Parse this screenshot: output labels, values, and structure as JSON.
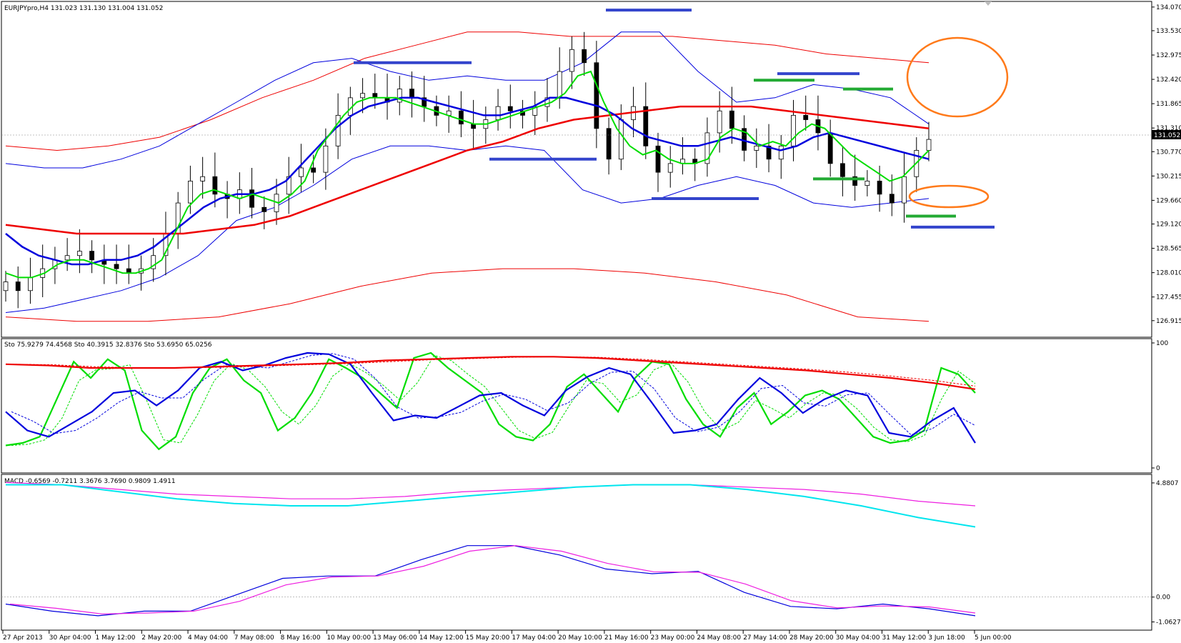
{
  "main_header": "EURJPYpro,H4  131.023 131.130 131.004 131.052",
  "sto_header": "Sto 75.9279 74.4568   Sto 40.3915 32.8376   Sto 53.6950 65.0256",
  "macd_header": "MACD -0.6569 -0.7211 3.3676 3.7690 0.9809 1.4911",
  "current_price": "131.052",
  "colors": {
    "bull": "#ffffff",
    "bear": "#000000",
    "green": "#00dd00",
    "blue": "#0000dd",
    "red": "#ee0000",
    "cyan": "#00e5ee",
    "magenta": "#ee1ee0",
    "orange": "#ff7a1a",
    "segblue": "#3344cc",
    "seggreen": "#22aa33"
  },
  "chart_data": [
    {
      "type": "candlestick",
      "title": "EURJPYpro,H4",
      "ylim": [
        126.7,
        134.1
      ],
      "y_ticks": [
        "134.070",
        "133.530",
        "132.975",
        "132.420",
        "131.865",
        "131.310",
        "130.770",
        "130.215",
        "129.660",
        "129.120",
        "128.565",
        "128.010",
        "127.455",
        "126.915"
      ],
      "x_labels": [
        "27 Apr 2013",
        "30 Apr 04:00",
        "1 May 12:00",
        "2 May 20:00",
        "4 May 04:00",
        "7 May 08:00",
        "8 May 16:00",
        "10 May 00:00",
        "13 May 06:00",
        "14 May 12:00",
        "15 May 20:00",
        "17 May 04:00",
        "20 May 10:00",
        "21 May 16:00",
        "23 May 00:00",
        "24 May 08:00",
        "27 May 14:00",
        "28 May 20:00",
        "30 May 04:00",
        "31 May 12:00",
        "3 Jun 18:00",
        "5 Jun 00:00"
      ],
      "closes": [
        127.8,
        127.6,
        127.9,
        128.1,
        128.3,
        128.4,
        128.5,
        128.3,
        128.2,
        128.1,
        128.0,
        128.1,
        128.4,
        128.9,
        129.6,
        130.1,
        130.2,
        129.8,
        129.7,
        129.9,
        129.5,
        129.4,
        129.8,
        130.2,
        130.4,
        130.3,
        130.9,
        131.6,
        132.0,
        132.1,
        132.0,
        131.9,
        132.2,
        132.0,
        131.8,
        131.6,
        131.7,
        131.4,
        131.3,
        131.5,
        131.8,
        131.7,
        131.6,
        131.8,
        132.0,
        132.6,
        133.1,
        132.8,
        131.3,
        130.6,
        131.5,
        131.8,
        130.9,
        130.3,
        130.5,
        130.6,
        130.5,
        131.2,
        131.7,
        131.3,
        130.8,
        130.9,
        130.6,
        130.9,
        131.6,
        131.5,
        131.2,
        130.5,
        130.2,
        130.0,
        130.1,
        129.8,
        129.6,
        130.2,
        130.8,
        131.05
      ],
      "ma_green": [
        128.0,
        127.9,
        127.9,
        128.0,
        128.2,
        128.3,
        128.3,
        128.2,
        128.1,
        128.0,
        128.0,
        128.1,
        128.3,
        128.9,
        129.5,
        129.8,
        129.9,
        129.8,
        129.7,
        129.8,
        129.7,
        129.6,
        129.8,
        130.1,
        130.8,
        131.2,
        131.6,
        131.9,
        132.0,
        132.0,
        132.0,
        131.9,
        131.8,
        131.7,
        131.6,
        131.5,
        131.4,
        131.4,
        131.5,
        131.6,
        131.7,
        131.8,
        131.9,
        132.1,
        132.5,
        132.6,
        131.9,
        131.3,
        130.9,
        130.7,
        130.8,
        130.6,
        130.5,
        130.5,
        130.6,
        131.1,
        131.3,
        131.2,
        130.9,
        131.0,
        130.9,
        131.2,
        131.4,
        131.3,
        131.0,
        130.7,
        130.5,
        130.3,
        130.1,
        130.2,
        130.5,
        130.8
      ],
      "ma_blue": [
        128.9,
        128.6,
        128.4,
        128.3,
        128.2,
        128.2,
        128.3,
        128.3,
        128.4,
        128.6,
        128.9,
        129.2,
        129.5,
        129.7,
        129.8,
        129.8,
        129.9,
        130.1,
        130.5,
        130.9,
        131.3,
        131.6,
        131.8,
        131.9,
        132.0,
        132.0,
        131.9,
        131.8,
        131.7,
        131.6,
        131.6,
        131.7,
        131.8,
        132.0,
        132.0,
        131.9,
        131.8,
        131.6,
        131.3,
        131.1,
        131.0,
        130.9,
        130.9,
        131.0,
        131.1,
        131.0,
        130.9,
        130.8,
        130.9,
        131.1,
        131.2,
        131.1,
        131.0,
        130.9,
        130.8,
        130.7,
        130.6
      ],
      "ma_red": [
        129.1,
        129.0,
        128.9,
        128.9,
        128.9,
        128.9,
        129.0,
        129.1,
        129.3,
        129.6,
        129.9,
        130.2,
        130.5,
        130.8,
        131.0,
        131.3,
        131.5,
        131.6,
        131.7,
        131.8,
        131.8,
        131.8,
        131.7,
        131.6,
        131.5,
        131.4,
        131.3
      ],
      "bb_blue_upper": [
        130.5,
        130.4,
        130.4,
        130.6,
        130.9,
        131.4,
        131.9,
        132.4,
        132.8,
        132.9,
        132.6,
        132.4,
        132.5,
        132.4,
        132.4,
        132.8,
        133.5,
        133.5,
        132.6,
        131.9,
        132.0,
        132.3,
        132.2,
        132.0,
        131.4
      ],
      "bb_blue_lower": [
        127.1,
        127.2,
        127.4,
        127.6,
        127.9,
        128.4,
        129.2,
        129.5,
        130.0,
        130.6,
        130.9,
        130.9,
        130.8,
        130.9,
        130.8,
        129.9,
        129.6,
        129.7,
        130.0,
        130.2,
        130.0,
        129.6,
        129.5,
        129.6,
        129.7
      ],
      "bb_red_upper": [
        130.9,
        130.8,
        130.9,
        131.1,
        131.5,
        132.0,
        132.4,
        132.9,
        133.2,
        133.5,
        133.5,
        133.4,
        133.4,
        133.4,
        133.3,
        133.2,
        133.0,
        132.9,
        132.8
      ],
      "bb_red_lower": [
        127.0,
        126.9,
        126.9,
        127.0,
        127.3,
        127.7,
        128.0,
        128.1,
        128.1,
        128.0,
        127.8,
        127.5,
        127.0,
        126.9
      ]
    },
    {
      "type": "line",
      "title": "Sto",
      "ylim": [
        0,
        100
      ],
      "y_ticks": [
        "100",
        "0"
      ],
      "series": [
        {
          "name": "Sto 75.9279 74.4568",
          "values": [
            18,
            20,
            25,
            55,
            85,
            72,
            87,
            78,
            30,
            15,
            25,
            60,
            80,
            87,
            70,
            60,
            30,
            40,
            60,
            87,
            80,
            72,
            60,
            48,
            88,
            92,
            80,
            70,
            60,
            35,
            25,
            22,
            35,
            65,
            75,
            60,
            45,
            72,
            85,
            83,
            55,
            35,
            25,
            48,
            60,
            35,
            45,
            58,
            62,
            55,
            40,
            25,
            20,
            22,
            30,
            80,
            75,
            60
          ]
        },
        {
          "name": "Sto 40.3915 32.8376",
          "values": [
            45,
            30,
            25,
            35,
            45,
            60,
            62,
            50,
            62,
            80,
            85,
            78,
            82,
            88,
            92,
            91,
            83,
            60,
            38,
            42,
            40,
            49,
            58,
            60,
            50,
            42,
            62,
            73,
            80,
            75,
            52,
            28,
            30,
            35,
            55,
            72,
            60,
            44,
            55,
            62,
            58,
            28,
            25,
            38,
            48,
            20
          ]
        },
        {
          "name": "Sto 53.6950 65.0256",
          "values": [
            83,
            82,
            80,
            80,
            80,
            81,
            82,
            83,
            84,
            86,
            87,
            88,
            89,
            89,
            88,
            86,
            84,
            82,
            80,
            78,
            75,
            72,
            68,
            63
          ]
        }
      ]
    },
    {
      "type": "line",
      "title": "MACD",
      "y_ticks": [
        "4.8807",
        "0.00",
        "-1.0627"
      ],
      "series": [
        {
          "name": "MACD -0.6569 -0.7211",
          "values": [
            4.8,
            4.8,
            4.5,
            4.2,
            4.0,
            3.9,
            3.9,
            4.1,
            4.3,
            4.5,
            4.7,
            4.8,
            4.8,
            4.6,
            4.3,
            3.9,
            3.4,
            3.0
          ]
        },
        {
          "name": "3.3676 3.7690",
          "values": [
            4.9,
            4.8,
            4.6,
            4.4,
            4.3,
            4.2,
            4.2,
            4.3,
            4.5,
            4.6,
            4.7,
            4.8,
            4.8,
            4.7,
            4.6,
            4.4,
            4.1,
            3.9
          ]
        },
        {
          "name": "0.9809 1.4911",
          "values": [
            -0.3,
            -0.6,
            -0.8,
            -0.6,
            -0.6,
            0.1,
            0.8,
            0.9,
            0.9,
            1.6,
            2.2,
            2.2,
            1.8,
            1.2,
            1.0,
            1.1,
            0.2,
            -0.4,
            -0.5,
            -0.3,
            -0.5,
            -0.8
          ]
        }
      ]
    }
  ]
}
